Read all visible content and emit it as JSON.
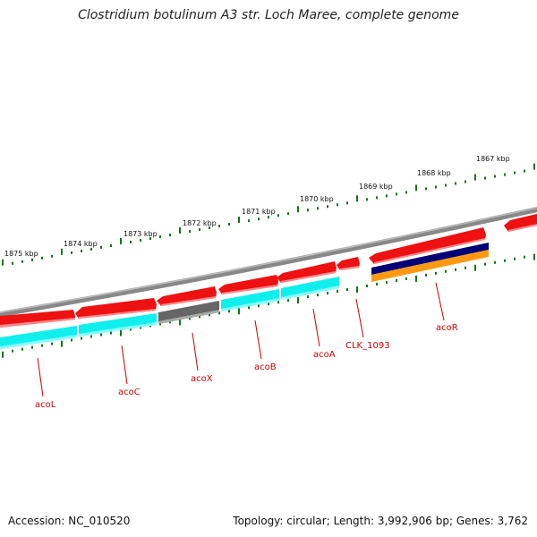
{
  "title": "Clostridium botulinum A3 str. Loch Maree, complete genome",
  "footer": {
    "accession_label": "Accession:",
    "accession": "NC_010520",
    "topology_label": "Topology:",
    "topology": "circular;",
    "length_label": "Length:",
    "length": "3,992,906 bp;",
    "genes_label": "Genes:",
    "genes": "3,762"
  },
  "ruler_labels": [
    "1875 kbp",
    "1874 kbp",
    "1873 kbp",
    "1872 kbp",
    "1871 kbp",
    "1870 kbp",
    "1869 kbp",
    "1868 kbp",
    "1867 kbp"
  ],
  "gene_labels": [
    "acoL",
    "acoC",
    "acoX",
    "acoB",
    "acoA",
    "CLK_1093",
    "acoR"
  ],
  "colors": {
    "backbone": "#888888",
    "gene_forward": "#ee1111",
    "cds_cyan": "#11eeee",
    "cds_gray": "#666666",
    "cds_navy": "#000077",
    "cds_orange": "#ff9911",
    "ruler_tick": "#117711",
    "gene_label": "#cc0000"
  }
}
